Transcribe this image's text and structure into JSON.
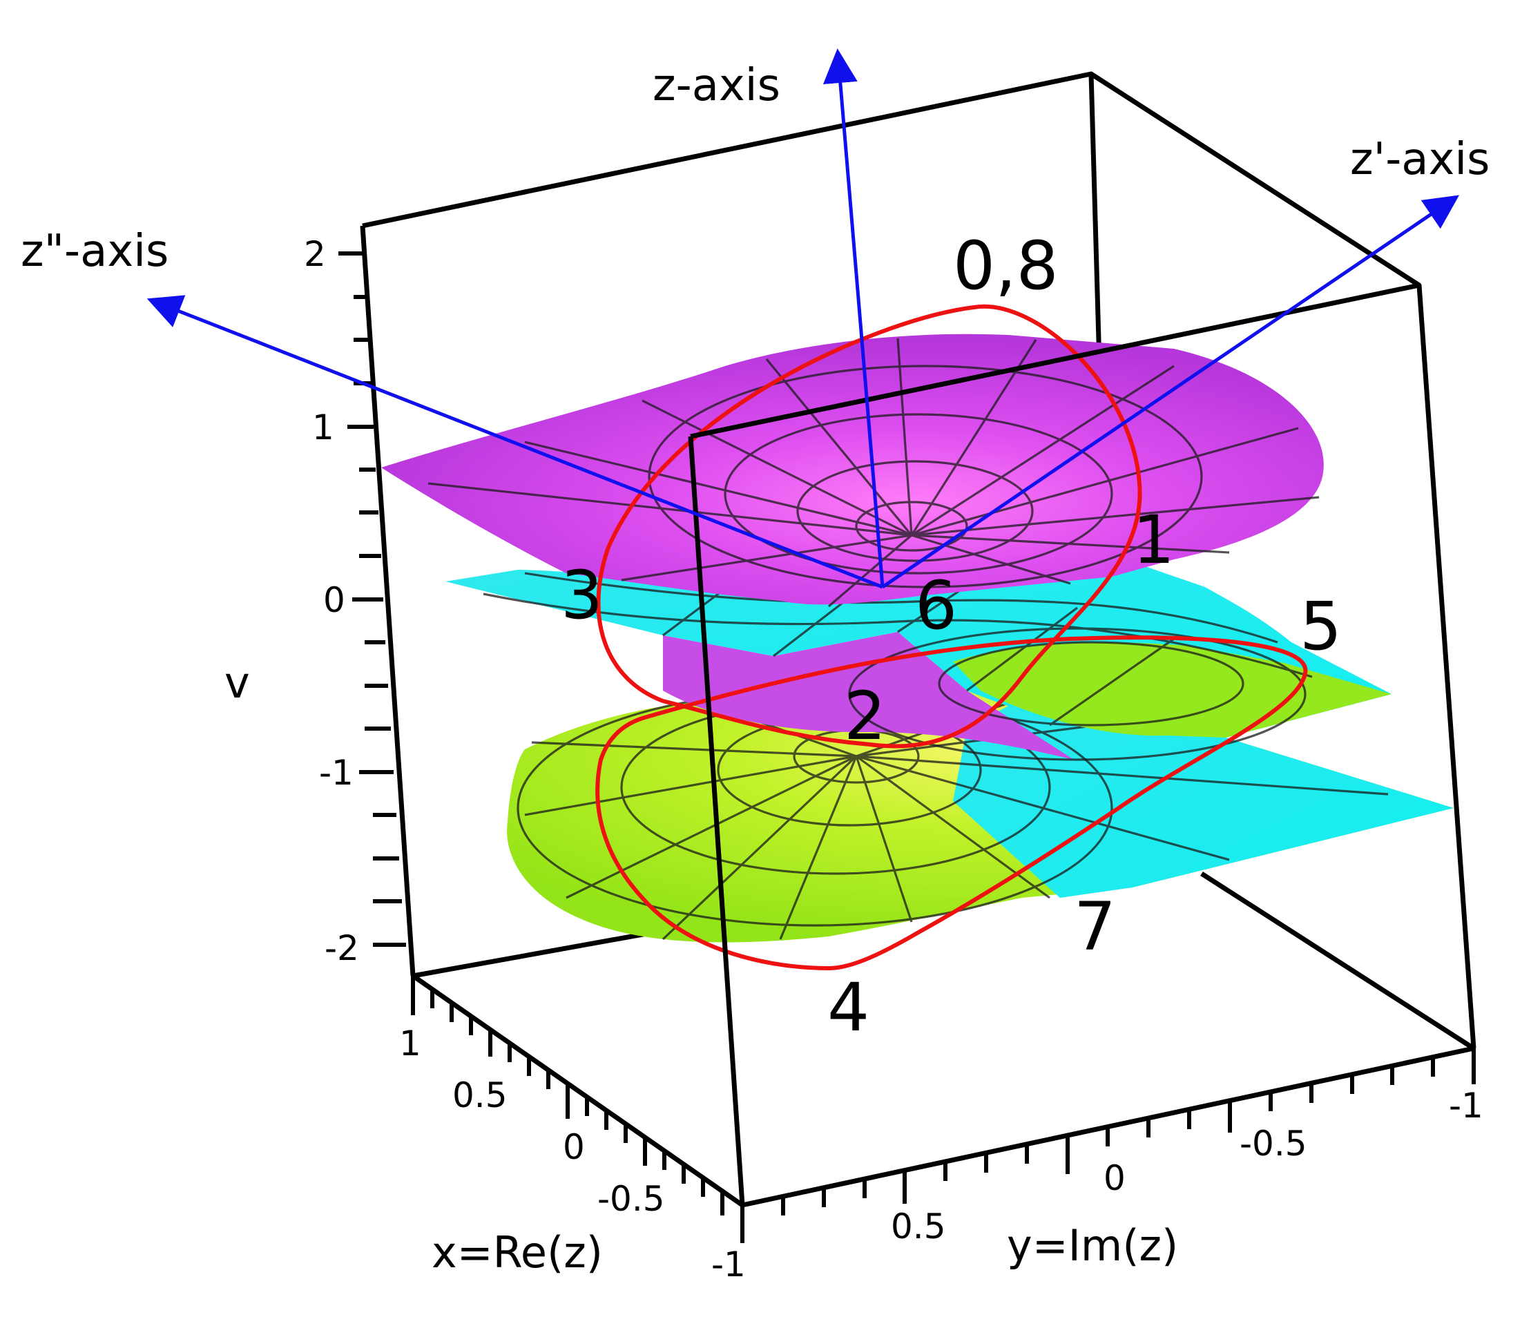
{
  "axes": {
    "v_label": "v",
    "x_label": "x=Re(z)",
    "y_label": "y=Im(z)",
    "v_ticks": [
      "2",
      "1",
      "0",
      "-1",
      "-2"
    ],
    "x_ticks": [
      "1",
      "0.5",
      "0",
      "-0.5",
      "-1"
    ],
    "y_ticks": [
      "0.5",
      "0",
      "-0.5",
      "-1"
    ]
  },
  "rotation_axes": {
    "z": "z-axis",
    "z_prime": "z'-axis",
    "z_double_prime": "z\"-axis"
  },
  "curve_points": [
    "0,8",
    "1",
    "2",
    "3",
    "4",
    "5",
    "6",
    "7"
  ],
  "colors": {
    "box": "#000000",
    "rotation_axes": "#1010ee",
    "curve": "#ee1111",
    "sheet_top": "#d23fe6",
    "sheet_middle": "#22eeee",
    "sheet_bottom": "#a8f020"
  }
}
